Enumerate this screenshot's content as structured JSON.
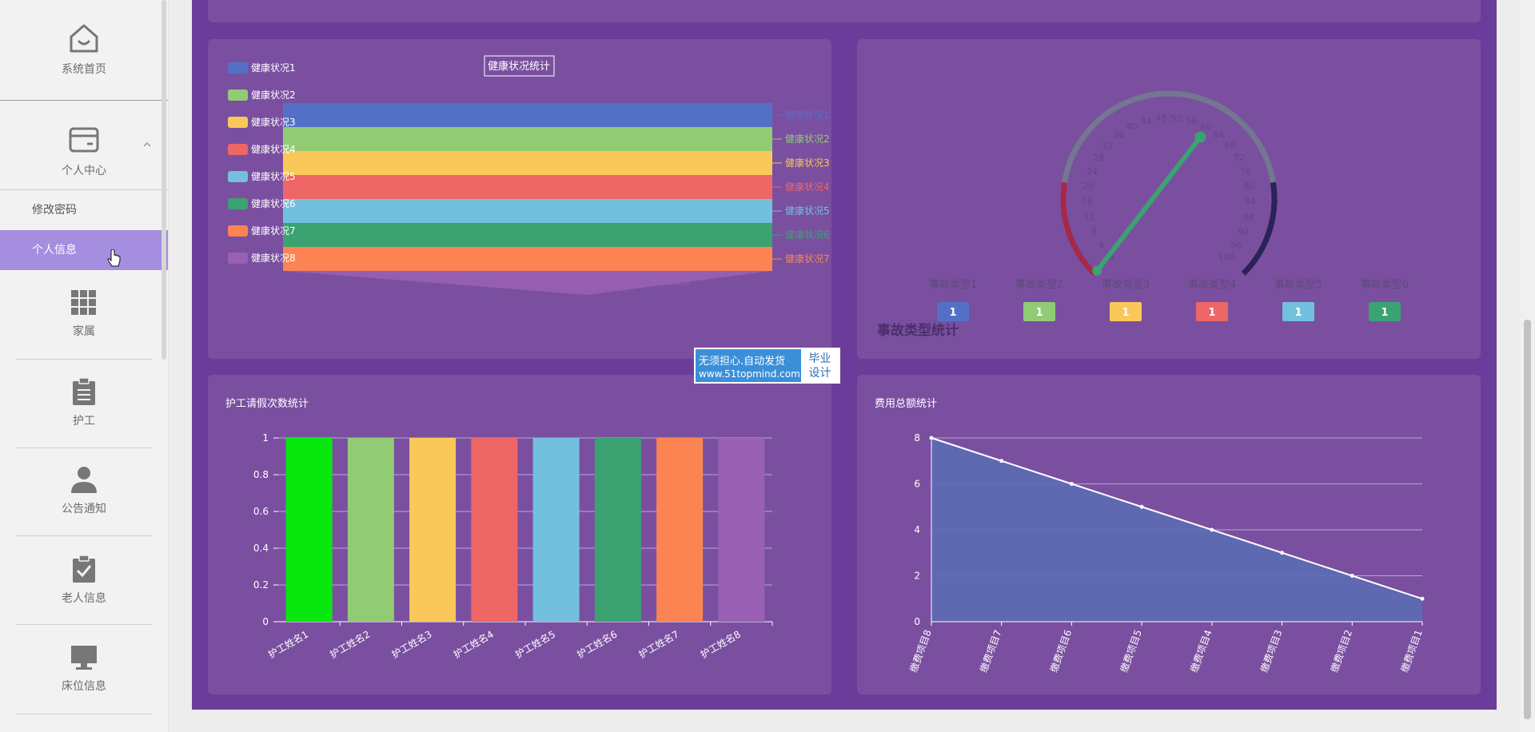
{
  "sidebar": {
    "home": "系统首页",
    "personal": "个人中心",
    "change_password": "修改密码",
    "personal_info": "个人信息",
    "family": "家属",
    "caregiver": "护工",
    "notice": "公告通知",
    "elder": "老人信息",
    "bed": "床位信息"
  },
  "watermark": {
    "line1": "无须担心.自动发货",
    "line2": "www.51topmind.com",
    "badge1": "毕业",
    "badge2": "设计"
  },
  "colors": {
    "palette": [
      "#5470c6",
      "#91cc75",
      "#fac858",
      "#ee6666",
      "#73c0de",
      "#3ba272",
      "#fc8452",
      "#9a60b4"
    ]
  },
  "charts": {
    "health": {
      "title": "健康状况统计",
      "legend": [
        "健康状况1",
        "健康状况2",
        "健康状况3",
        "健康状况4",
        "健康状况5",
        "健康状况6",
        "健康状况7",
        "健康状况8"
      ],
      "right_labels": [
        "健康状况1",
        "健康状况2",
        "健康状况3",
        "健康状况4",
        "健康状况5",
        "健康状况6",
        "健康状况7"
      ],
      "bottom_label": "健康状况8"
    },
    "accident": {
      "title": "事故类型统计",
      "ticks": [
        "0",
        "4",
        "8",
        "12",
        "16",
        "20",
        "24",
        "28",
        "32",
        "36",
        "40",
        "44",
        "48",
        "52",
        "56",
        "60",
        "64",
        "68",
        "72",
        "76",
        "80",
        "84",
        "88",
        "92",
        "96",
        "100"
      ],
      "types": [
        "事故类型1",
        "事故类型2",
        "事故类型3",
        "事故类型4",
        "事故类型5",
        "事故类型6"
      ],
      "values": [
        "1",
        "1",
        "1",
        "1",
        "1",
        "1"
      ]
    },
    "leave": {
      "title": "护工请假次数统计"
    },
    "fees": {
      "title": "费用总额统计"
    }
  },
  "chart_data": [
    {
      "type": "bar",
      "title": "护工请假次数统计",
      "categories": [
        "护工姓名1",
        "护工姓名2",
        "护工姓名3",
        "护工姓名4",
        "护工姓名5",
        "护工姓名6",
        "护工姓名7",
        "护工姓名8"
      ],
      "values": [
        1,
        1,
        1,
        1,
        1,
        1,
        1,
        1
      ],
      "yticks": [
        "0",
        "0.2",
        "0.4",
        "0.6",
        "0.8",
        "1"
      ],
      "ylim": [
        0,
        1
      ],
      "colors": [
        "#08e80f",
        "#91cc75",
        "#fac858",
        "#ee6666",
        "#73c0de",
        "#3ba272",
        "#fc8452",
        "#9a60b4"
      ]
    },
    {
      "type": "area",
      "title": "费用总额统计",
      "categories": [
        "缴费项目8",
        "缴费项目7",
        "缴费项目6",
        "缴费项目5",
        "缴费项目4",
        "缴费项目3",
        "缴费项目2",
        "缴费项目1"
      ],
      "values": [
        8,
        7,
        6,
        5,
        4,
        3,
        2,
        1
      ],
      "yticks": [
        "0",
        "2",
        "4",
        "6",
        "8"
      ],
      "ylim": [
        0,
        8
      ],
      "fill": "#5b6bb4"
    }
  ]
}
